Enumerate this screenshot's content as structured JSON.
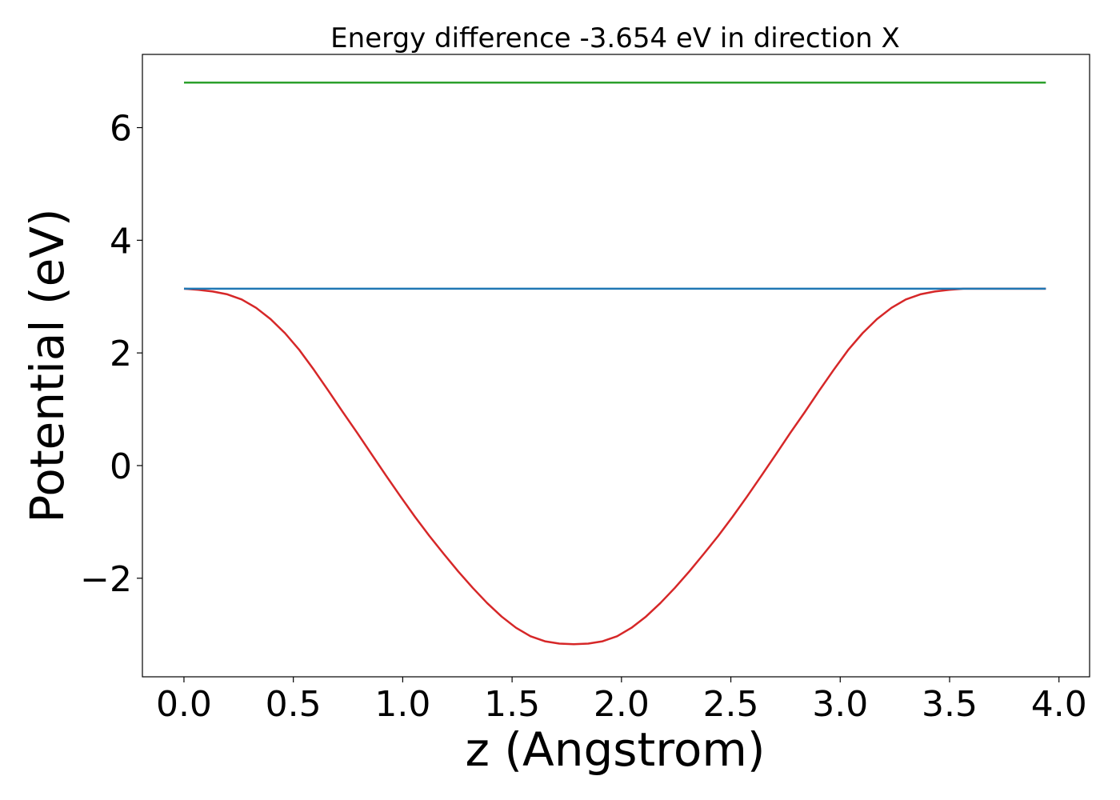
{
  "chart_data": {
    "type": "line",
    "title": "Energy difference -3.654 eV in direction X",
    "xlabel": "z (Angstrom)",
    "ylabel": "Potential (eV)",
    "xlim": [
      -0.19,
      4.14
    ],
    "ylim": [
      -3.75,
      7.3
    ],
    "xticks": [
      0.0,
      0.5,
      1.0,
      1.5,
      2.0,
      2.5,
      3.0,
      3.5,
      4.0
    ],
    "xtick_labels": [
      "0.0",
      "0.5",
      "1.0",
      "1.5",
      "2.0",
      "2.5",
      "3.0",
      "3.5",
      "4.0"
    ],
    "yticks": [
      -2,
      0,
      2,
      4,
      6
    ],
    "ytick_labels": [
      "−2",
      "0",
      "2",
      "4",
      "6"
    ],
    "grid": false,
    "legend": "none",
    "series": [
      {
        "color": "#d62728",
        "x": [
          0.0,
          0.066,
          0.132,
          0.198,
          0.264,
          0.33,
          0.396,
          0.462,
          0.528,
          0.594,
          0.66,
          0.726,
          0.792,
          0.858,
          0.924,
          0.99,
          1.056,
          1.122,
          1.188,
          1.254,
          1.32,
          1.386,
          1.452,
          1.518,
          1.584,
          1.65,
          1.716,
          1.782,
          1.848,
          1.914,
          1.98,
          2.046,
          2.112,
          2.178,
          2.244,
          2.31,
          2.376,
          2.442,
          2.508,
          2.574,
          2.64,
          2.706,
          2.772,
          2.838,
          2.904,
          2.97,
          3.036,
          3.102,
          3.168,
          3.234,
          3.3,
          3.366,
          3.432,
          3.498,
          3.564,
          3.63,
          3.696,
          3.762,
          3.828,
          3.894,
          3.94
        ],
        "y": [
          3.14,
          3.12,
          3.09,
          3.04,
          2.95,
          2.8,
          2.6,
          2.35,
          2.05,
          1.7,
          1.33,
          0.95,
          0.58,
          0.2,
          -0.18,
          -0.55,
          -0.91,
          -1.25,
          -1.57,
          -1.88,
          -2.17,
          -2.44,
          -2.68,
          -2.88,
          -3.03,
          -3.12,
          -3.16,
          -3.17,
          -3.16,
          -3.12,
          -3.03,
          -2.88,
          -2.68,
          -2.44,
          -2.17,
          -1.88,
          -1.57,
          -1.25,
          -0.91,
          -0.55,
          -0.18,
          0.2,
          0.58,
          0.95,
          1.33,
          1.7,
          2.05,
          2.35,
          2.6,
          2.8,
          2.95,
          3.04,
          3.09,
          3.12,
          3.14,
          3.14,
          3.14,
          3.14,
          3.14,
          3.14,
          3.14
        ]
      },
      {
        "color": "#2ca02c",
        "x": [
          0.0,
          3.94
        ],
        "y": [
          6.8,
          6.8
        ]
      },
      {
        "color": "#1f77b4",
        "x": [
          0.0,
          3.94
        ],
        "y": [
          3.14,
          3.14
        ]
      }
    ]
  }
}
